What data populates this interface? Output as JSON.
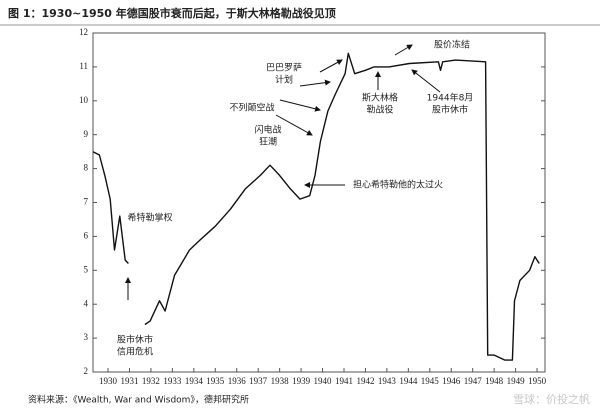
{
  "chart_data": {
    "type": "line",
    "title": "图 1：1930~1950 年德国股市衰而后起，于斯大林格勒战役见顶",
    "source": "资料来源：《Wealth, War and Wisdom》，德邦研究所",
    "watermark": "雪球：价投之帆",
    "x": [
      1929.3,
      1929.6,
      1929.85,
      1930.1,
      1930.3,
      1930.55,
      1930.8,
      1930.95,
      1931.3,
      1931.72,
      1931.96,
      1932.4,
      1932.66,
      1933.1,
      1933.8,
      1934.3,
      1935.0,
      1935.7,
      1936.4,
      1937.1,
      1937.55,
      1938.0,
      1938.5,
      1938.95,
      1939.4,
      1939.65,
      1939.9,
      1940.25,
      1940.6,
      1941.05,
      1941.2,
      1941.5,
      1942.0,
      1942.4,
      1943.1,
      1944.05,
      1945.4,
      1945.5,
      1945.6,
      1946.2,
      1947.6,
      1947.7,
      1948.0,
      1948.5,
      1948.85,
      1948.95,
      1949.2,
      1949.65,
      1949.9,
      1950.1
    ],
    "series": [
      {
        "color": "#111111",
        "values": [
          8.5,
          8.4,
          7.8,
          7.1,
          5.6,
          6.6,
          5.3,
          5.2,
          null,
          3.4,
          3.5,
          4.1,
          3.8,
          4.85,
          5.6,
          5.9,
          6.3,
          6.8,
          7.4,
          7.8,
          8.1,
          7.8,
          7.4,
          7.1,
          7.2,
          7.8,
          8.8,
          9.7,
          10.2,
          10.8,
          11.4,
          10.8,
          10.9,
          11.0,
          11.0,
          11.1,
          11.15,
          10.9,
          11.15,
          11.2,
          11.15,
          2.5,
          2.5,
          2.35,
          2.35,
          4.1,
          4.7,
          5.0,
          5.4,
          5.2
        ]
      }
    ],
    "xlim": [
      1929.3,
      1950.37
    ],
    "xticks": [
      1930,
      1931,
      1932,
      1933,
      1934,
      1935,
      1936,
      1937,
      1938,
      1939,
      1940,
      1941,
      1942,
      1943,
      1944,
      1945,
      1946,
      1947,
      1948,
      1949,
      1950
    ],
    "ylim": [
      2,
      12
    ],
    "yticks": [
      2,
      3,
      4,
      5,
      6,
      7,
      8,
      9,
      10,
      11,
      12
    ],
    "annotations": [
      {
        "lines": [
          "希特勒掌权"
        ]
      },
      {
        "lines": [
          "股市休市",
          "信用危机"
        ]
      },
      {
        "lines": [
          "闪电战",
          "狂潮"
        ]
      },
      {
        "lines": [
          "不列颠空战"
        ]
      },
      {
        "lines": [
          "巴巴罗萨",
          "计划"
        ]
      },
      {
        "lines": [
          "斯大林格",
          "勒战役"
        ]
      },
      {
        "lines": [
          "股价冻结"
        ]
      },
      {
        "lines": [
          "1944年8月",
          "股市休市"
        ]
      },
      {
        "lines": [
          "担心希特勒他的太过火"
        ]
      }
    ]
  }
}
